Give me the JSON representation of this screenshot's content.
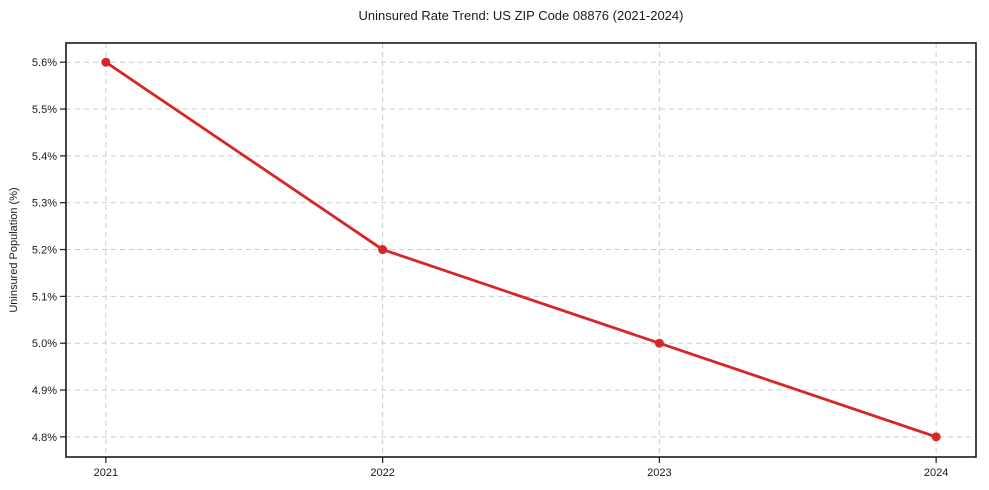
{
  "chart_data": {
    "type": "line",
    "title": "Uninsured Rate Trend: US ZIP Code 08876 (2021-2024)",
    "xlabel": "",
    "ylabel": "Uninsured Population (%)",
    "x": [
      2021,
      2022,
      2023,
      2024
    ],
    "x_tick_labels": [
      "2021",
      "2022",
      "2023",
      "2024"
    ],
    "series": [
      {
        "name": "Uninsured rate",
        "values": [
          5.6,
          5.2,
          5.0,
          4.8
        ]
      }
    ],
    "y_tick_values": [
      4.8,
      4.9,
      5.0,
      5.1,
      5.2,
      5.3,
      5.4,
      5.5,
      5.6
    ],
    "y_tick_labels": [
      "4.8%",
      "4.9%",
      "5.0%",
      "5.1%",
      "5.2%",
      "5.3%",
      "5.4%",
      "5.5%",
      "5.6%"
    ],
    "xlim": [
      2020.856,
      2024.144
    ],
    "ylim": [
      4.757,
      5.641
    ],
    "grid": true,
    "grid_style": "dashed",
    "legend": "none",
    "colors": {
      "line": "#d62728",
      "marker": "#d62728",
      "grid": "#cccccc",
      "axis": "#1a1a1a",
      "text": "#1a1a1a",
      "background": "#ffffff"
    }
  }
}
